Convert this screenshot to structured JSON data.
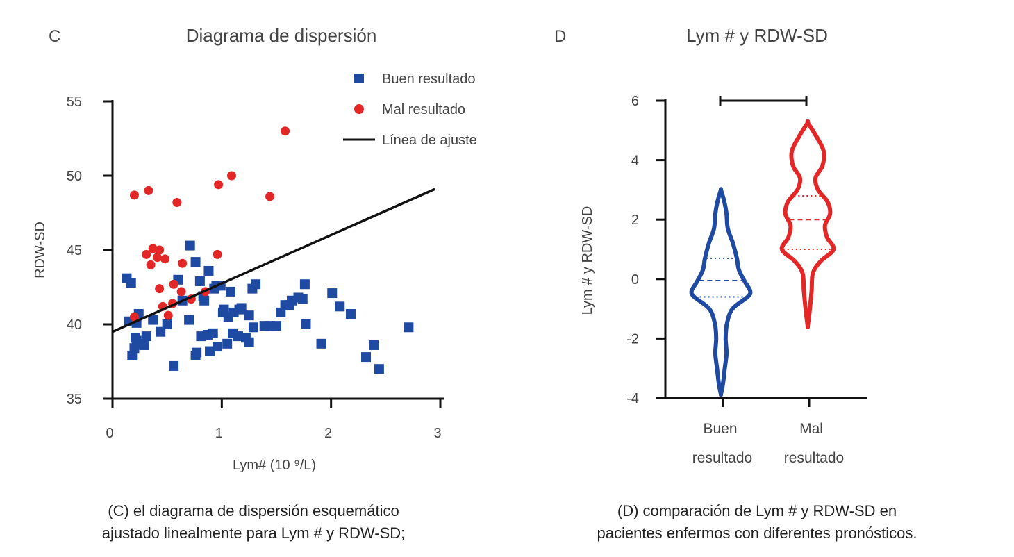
{
  "colors": {
    "good": "#1f4aa1",
    "bad": "#e32626",
    "axis": "#111111",
    "text": "#444444"
  },
  "chart_data": [
    {
      "panel": "C",
      "type": "scatter",
      "title": "Diagrama de dispersión",
      "xlabel": "Lym# (10 ⁹/L)",
      "ylabel": "RDW-SD",
      "xlim": [
        0,
        3
      ],
      "ylim": [
        35,
        55
      ],
      "xticks": [
        0,
        1,
        2,
        3
      ],
      "yticks": [
        35,
        40,
        45,
        50,
        55
      ],
      "grid": false,
      "legend_position": "top-right",
      "series": [
        {
          "name": "Buen resultado",
          "marker": "square",
          "color": "#1f4aa1",
          "points": [
            [
              0.13,
              43.1
            ],
            [
              0.17,
              42.8
            ],
            [
              0.15,
              40.2
            ],
            [
              0.18,
              37.9
            ],
            [
              0.2,
              38.4
            ],
            [
              0.22,
              38.9
            ],
            [
              0.21,
              39.1
            ],
            [
              0.22,
              40.1
            ],
            [
              0.24,
              40.7
            ],
            [
              0.24,
              38.7
            ],
            [
              0.29,
              38.6
            ],
            [
              0.31,
              39.2
            ],
            [
              0.37,
              40.3
            ],
            [
              0.44,
              39.5
            ],
            [
              0.5,
              40
            ],
            [
              0.56,
              37.2
            ],
            [
              0.6,
              43
            ],
            [
              0.64,
              41.6
            ],
            [
              0.7,
              40.3
            ],
            [
              0.71,
              45.3
            ],
            [
              0.76,
              44.2
            ],
            [
              0.76,
              37.9
            ],
            [
              0.77,
              38.1
            ],
            [
              0.8,
              42.9
            ],
            [
              0.81,
              39.2
            ],
            [
              0.83,
              41.9
            ],
            [
              0.84,
              41.6
            ],
            [
              0.88,
              43.6
            ],
            [
              0.87,
              39.3
            ],
            [
              0.89,
              38.2
            ],
            [
              0.92,
              39.4
            ],
            [
              0.93,
              42.4
            ],
            [
              0.95,
              42.6
            ],
            [
              0.96,
              38.5
            ],
            [
              0.99,
              42.6
            ],
            [
              1.01,
              40.8
            ],
            [
              1.02,
              41
            ],
            [
              1.05,
              38.7
            ],
            [
              1.06,
              40.5
            ],
            [
              1.08,
              42.2
            ],
            [
              1.1,
              39.4
            ],
            [
              1.11,
              40.8
            ],
            [
              1.15,
              39.2
            ],
            [
              1.16,
              41
            ],
            [
              1.18,
              41.1
            ],
            [
              1.22,
              39.1
            ],
            [
              1.25,
              40.6
            ],
            [
              1.25,
              38.8
            ],
            [
              1.28,
              42.4
            ],
            [
              1.29,
              39.8
            ],
            [
              1.31,
              42.7
            ],
            [
              1.39,
              39.9
            ],
            [
              1.44,
              39.9
            ],
            [
              1.5,
              39.9
            ],
            [
              1.54,
              40.8
            ],
            [
              1.58,
              41.3
            ],
            [
              1.62,
              41.3
            ],
            [
              1.64,
              41.6
            ],
            [
              1.7,
              41.8
            ],
            [
              1.74,
              41.7
            ],
            [
              1.76,
              42.7
            ],
            [
              1.77,
              40
            ],
            [
              1.91,
              38.7
            ],
            [
              2.01,
              42.1
            ],
            [
              2.08,
              41.2
            ],
            [
              2.18,
              40.7
            ],
            [
              2.32,
              37.8
            ],
            [
              2.39,
              38.6
            ],
            [
              2.44,
              37
            ],
            [
              2.71,
              39.8
            ]
          ]
        },
        {
          "name": "Mal resultado",
          "marker": "circle",
          "color": "#e32626",
          "points": [
            [
              0.2,
              48.7
            ],
            [
              0.2,
              40.5
            ],
            [
              0.33,
              49
            ],
            [
              0.31,
              44.7
            ],
            [
              0.35,
              44
            ],
            [
              0.37,
              45.1
            ],
            [
              0.41,
              44.5
            ],
            [
              0.43,
              45
            ],
            [
              0.43,
              42.4
            ],
            [
              0.46,
              41.2
            ],
            [
              0.48,
              44.4
            ],
            [
              0.51,
              40.6
            ],
            [
              0.55,
              41.4
            ],
            [
              0.56,
              42.7
            ],
            [
              0.59,
              48.2
            ],
            [
              0.63,
              42.2
            ],
            [
              0.64,
              44.1
            ],
            [
              0.72,
              41.7
            ],
            [
              0.85,
              42.2
            ],
            [
              0.96,
              44.7
            ],
            [
              0.97,
              49.4
            ],
            [
              1.09,
              50
            ],
            [
              1.44,
              48.6
            ],
            [
              1.58,
              53
            ]
          ]
        }
      ],
      "fit_line": {
        "name": "Línea de ajuste",
        "color": "#111111",
        "from": [
          0,
          39.5
        ],
        "to": [
          2.95,
          49.1
        ]
      },
      "legend": [
        "Buen resultado",
        "Mal resultado",
        "Línea de ajuste"
      ]
    },
    {
      "panel": "D",
      "type": "violin",
      "title": "Lym # y RDW-SD",
      "xlabel": "",
      "ylabel": "Lym # y RDW-SD",
      "ylim": [
        -4,
        6
      ],
      "yticks": [
        -4,
        -2,
        0,
        2,
        4,
        6
      ],
      "categories": [
        "Buen resultado",
        "Mal resultado"
      ],
      "category_labels": [
        [
          "Buen",
          "resultado"
        ],
        [
          "Mal",
          "resultado"
        ]
      ],
      "grid": false,
      "series": [
        {
          "name": "Buen resultado",
          "color": "#1f4aa1",
          "median": -0.05,
          "q1": -0.6,
          "q3": 0.7,
          "density": [
            [
              -3.85,
              0.004
            ],
            [
              -3.5,
              0.05
            ],
            [
              -3.0,
              0.09
            ],
            [
              -2.5,
              0.13
            ],
            [
              -2.0,
              0.11
            ],
            [
              -1.5,
              0.14
            ],
            [
              -1.0,
              0.27
            ],
            [
              -0.6,
              0.62
            ],
            [
              -0.4,
              0.68
            ],
            [
              -0.1,
              0.56
            ],
            [
              0.3,
              0.42
            ],
            [
              0.7,
              0.37
            ],
            [
              1.2,
              0.28
            ],
            [
              1.7,
              0.16
            ],
            [
              2.2,
              0.13
            ],
            [
              2.6,
              0.08
            ],
            [
              2.98,
              0.004
            ]
          ]
        },
        {
          "name": "Mal resultado",
          "color": "#e32626",
          "median": 2.0,
          "q1": 1.0,
          "q3": 2.8,
          "density": [
            [
              -1.55,
              0.004
            ],
            [
              -1.0,
              0.05
            ],
            [
              -0.4,
              0.09
            ],
            [
              0.2,
              0.12
            ],
            [
              0.6,
              0.3
            ],
            [
              1.0,
              0.6
            ],
            [
              1.4,
              0.45
            ],
            [
              1.8,
              0.4
            ],
            [
              2.2,
              0.52
            ],
            [
              2.6,
              0.46
            ],
            [
              3.0,
              0.24
            ],
            [
              3.4,
              0.18
            ],
            [
              3.8,
              0.34
            ],
            [
              4.3,
              0.37
            ],
            [
              4.8,
              0.2
            ],
            [
              5.25,
              0.004
            ]
          ]
        }
      ],
      "significance_bracket": true
    }
  ],
  "captions": {
    "c_line1": "(C) el diagrama de dispersión esquemático",
    "c_line2": "ajustado linealmente para Lym # y RDW-SD;",
    "d_line1": "(D) comparación de Lym # y RDW-SD en",
    "d_line2": "pacientes enfermos con diferentes pronósticos."
  }
}
